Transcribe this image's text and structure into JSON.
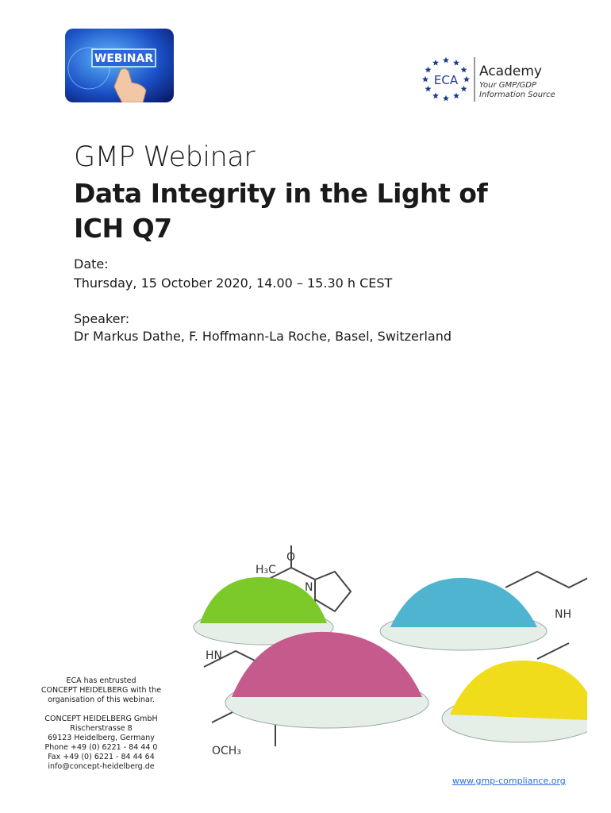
{
  "badge": {
    "label": "WEBINAR"
  },
  "logo": {
    "mark": "ECA",
    "name": "Academy",
    "tagline": [
      "Your GMP/GDP",
      "Information Source"
    ]
  },
  "title": {
    "kicker": "GMP Webinar",
    "lines": [
      "Data Integrity in the Light of",
      "ICH Q7"
    ]
  },
  "date": {
    "label": "Date:",
    "value": "Thursday, 15 October 2020, 14.00 – 15.30 h CEST"
  },
  "speaker": {
    "label": "Speaker:",
    "value": "Dr Markus Dathe, F. Hoffmann-La Roche, Basel, Switzerland"
  },
  "image": {
    "labels": [
      "H₃C",
      "N",
      "O",
      "NH",
      "OCH₃",
      "HN"
    ]
  },
  "organiser": {
    "note": [
      "ECA has entrusted",
      "CONCEPT HEIDELBERG with the",
      "organisation of this webinar."
    ],
    "address": [
      "CONCEPT HEIDELBERG GmbH",
      "Rischerstrasse 8",
      "69123 Heidelberg, Germany",
      "Phone +49 (0) 6221 - 84 44 0",
      "Fax +49 (0) 6221 - 84 44 64",
      "info@concept-heidelberg.de"
    ]
  },
  "url": "www.gmp-compliance.org"
}
